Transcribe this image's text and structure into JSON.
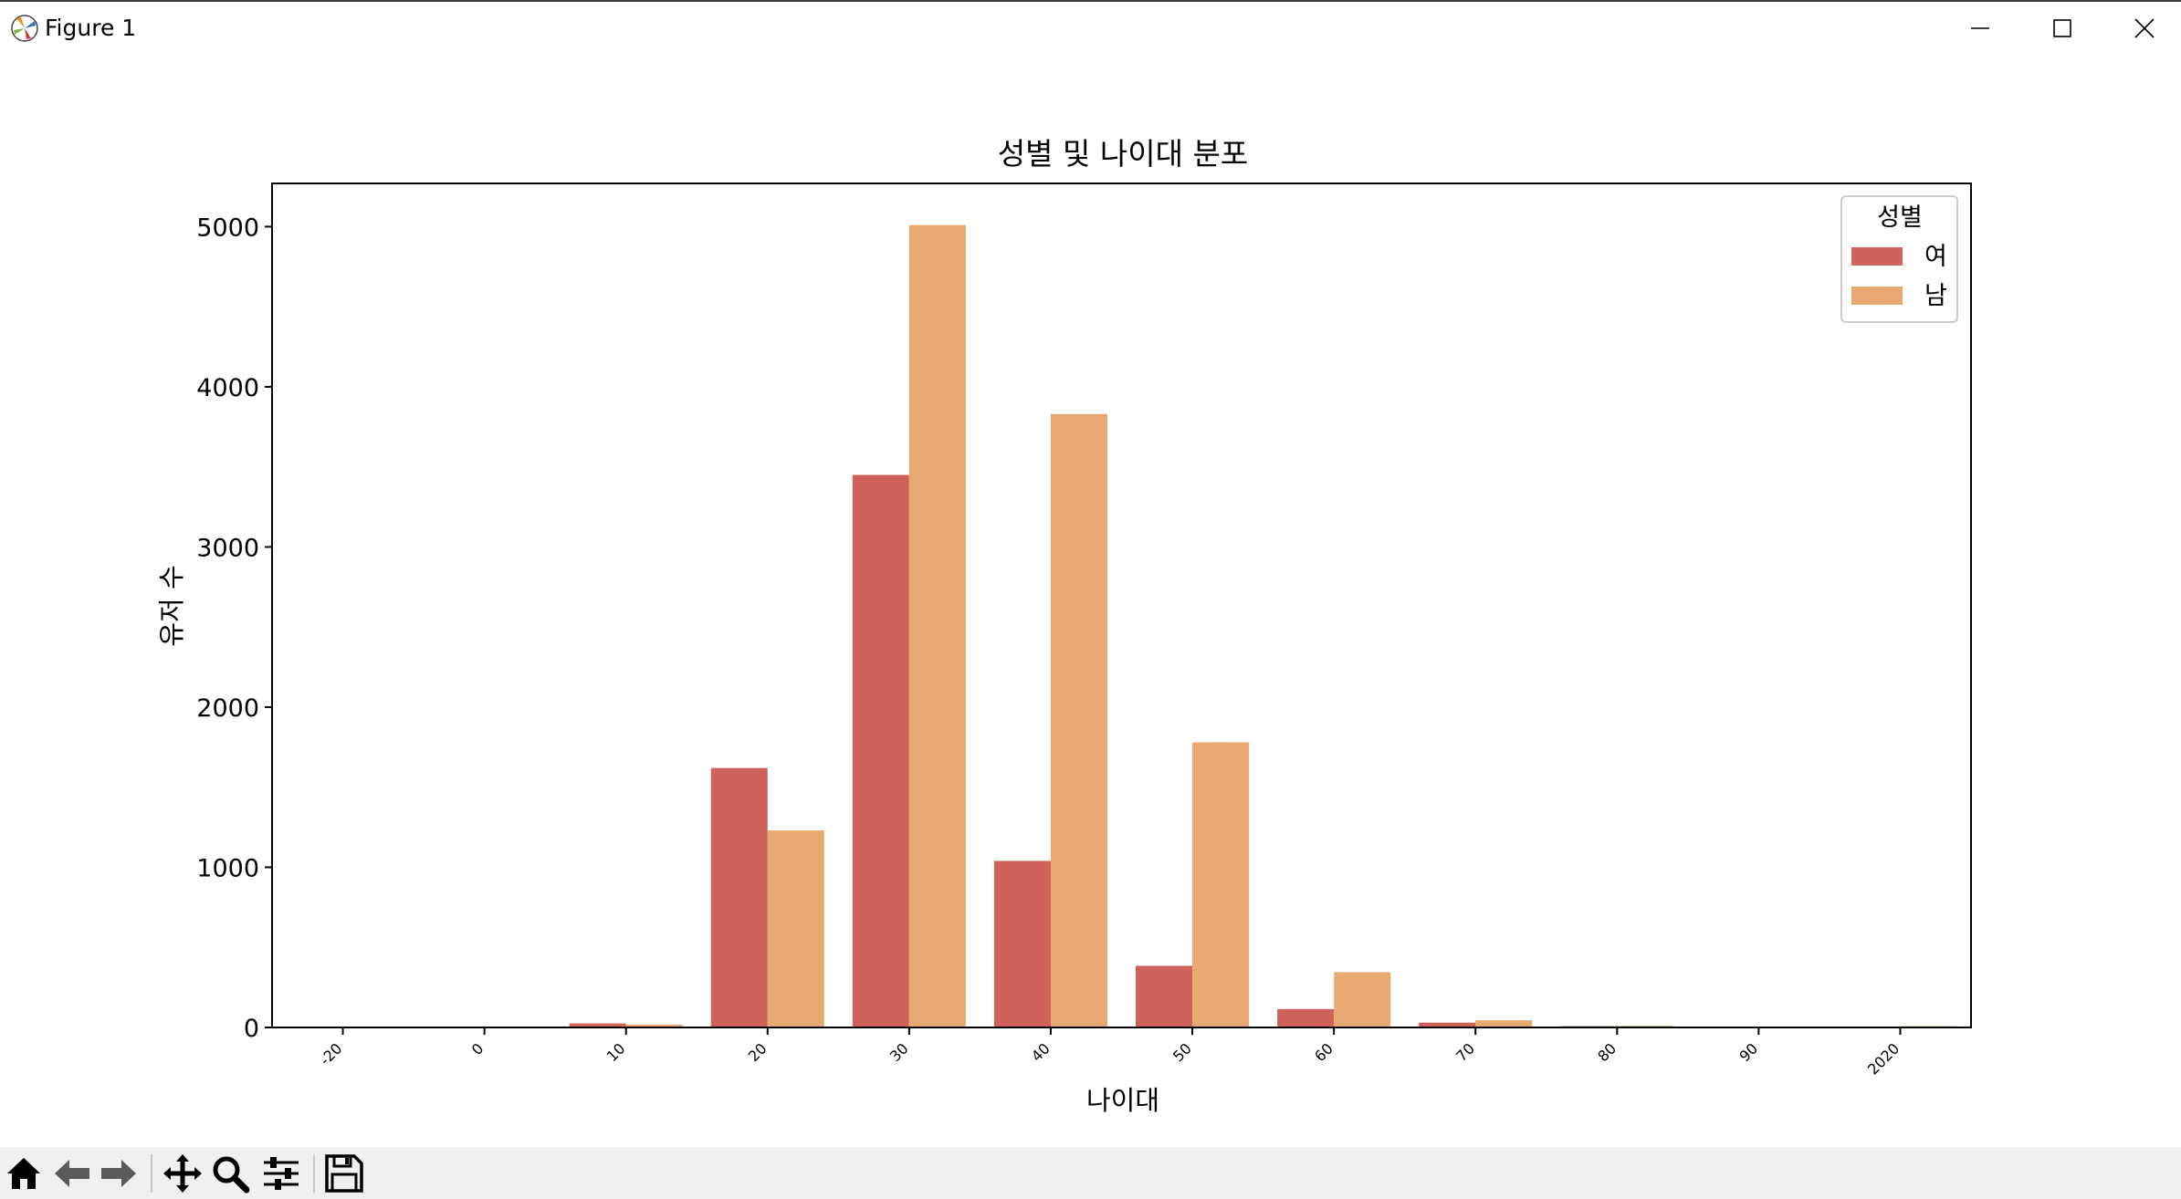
{
  "window": {
    "title": "Figure 1",
    "icons": {
      "app": "matplotlib-icon",
      "minimize": "minimize-icon",
      "maximize": "maximize-icon",
      "close": "close-icon"
    }
  },
  "toolbar": {
    "buttons": [
      "home-icon",
      "back-arrow-icon",
      "forward-arrow-icon",
      "pan-icon",
      "zoom-icon",
      "configure-subplots-icon",
      "save-icon"
    ]
  },
  "colors": {
    "female": "#d0625c",
    "male": "#e8a871",
    "axis": "#000000",
    "background": "#ffffff"
  },
  "chart_data": {
    "type": "bar",
    "title": "성별 및 나이대 분포",
    "xlabel": "나이대",
    "ylabel": "유저 수",
    "categories": [
      "-20",
      "0",
      "10",
      "20",
      "30",
      "40",
      "50",
      "60",
      "70",
      "80",
      "90",
      "2020"
    ],
    "series": [
      {
        "name": "여",
        "color": "#d0625c",
        "values": [
          1,
          3,
          25,
          1620,
          3450,
          1040,
          385,
          115,
          30,
          8,
          3,
          2
        ]
      },
      {
        "name": "남",
        "color": "#e8a871",
        "values": [
          0,
          2,
          18,
          1230,
          5010,
          3830,
          1780,
          345,
          45,
          10,
          4,
          8
        ]
      }
    ],
    "yticks": [
      0,
      1000,
      2000,
      3000,
      4000,
      5000
    ],
    "ylim": [
      0,
      5270
    ],
    "legend": {
      "title": "성별",
      "placement": "top-right"
    },
    "grid": false
  }
}
